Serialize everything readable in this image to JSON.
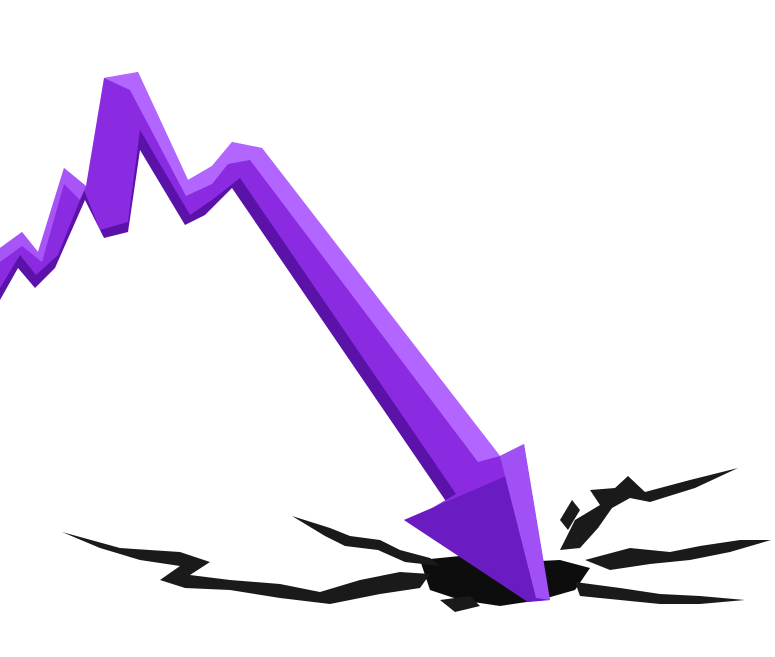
{
  "colors": {
    "background": "#ffffff",
    "arrow_front": "#8a2be2",
    "arrow_top": "#b266ff",
    "arrow_side": "#5a12a8",
    "arrow_shadow": "#3d0a78",
    "crack": "#1a1a1a",
    "crack_depth": "#000000"
  },
  "icons": {
    "arrow": "downtrend-arrow-icon",
    "crack": "ground-crack-icon"
  }
}
